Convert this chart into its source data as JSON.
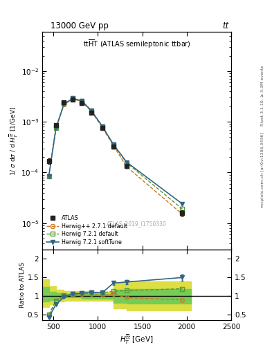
{
  "title_top": "13000 GeV pp",
  "title_top_right": "tt",
  "watermark": "ATLAS_2019_I1750330",
  "right_label1": "Rivet 3.1.10, ≥ 3.3M events",
  "right_label2": "mcplots.cern.ch [arXiv:1306.3436]",
  "ylabel_main": "1/ σ dσ / d H_T [1/GeV]",
  "ylabel_ratio": "Ratio to ATLAS",
  "xlabel": "H_T [GeV]",
  "xlim": [
    375,
    2500
  ],
  "ylim_main": [
    3e-06,
    0.06
  ],
  "ylim_ratio": [
    0.35,
    2.25
  ],
  "ratio_yticks": [
    0.5,
    1.0,
    1.5,
    2.0
  ],
  "xticks_main": [
    500,
    1000,
    1500,
    2000,
    2500
  ],
  "atlas_x": [
    450,
    530,
    620,
    720,
    820,
    930,
    1050,
    1175,
    1325,
    1950
  ],
  "atlas_y": [
    0.00017,
    0.00085,
    0.0024,
    0.00275,
    0.00235,
    0.0015,
    0.00075,
    0.00032,
    0.000135,
    1.6e-05
  ],
  "atlas_yerr_lo": [
    2e-05,
    5e-05,
    0.00015,
    0.00015,
    0.00012,
    8e-05,
    4e-05,
    2e-05,
    8e-06,
    2e-06
  ],
  "atlas_yerr_hi": [
    2e-05,
    5e-05,
    0.00015,
    0.00015,
    0.00012,
    8e-05,
    4e-05,
    2e-05,
    8e-06,
    2e-06
  ],
  "herwigpp_x": [
    450,
    530,
    620,
    720,
    820,
    930,
    1050,
    1175,
    1325,
    1950
  ],
  "herwigpp_y": [
    8.5e-05,
    0.00075,
    0.0022,
    0.00285,
    0.0025,
    0.0016,
    0.00078,
    0.00034,
    0.00013,
    1.5e-05
  ],
  "herwig721_x": [
    450,
    530,
    620,
    720,
    820,
    930,
    1050,
    1175,
    1325,
    1950
  ],
  "herwig721_y": [
    8.5e-05,
    0.00075,
    0.00225,
    0.0029,
    0.0026,
    0.00165,
    0.00082,
    0.00036,
    0.000155,
    1.9e-05
  ],
  "herwig721soft_x": [
    450,
    530,
    620,
    720,
    820,
    930,
    1050,
    1175,
    1325,
    1950
  ],
  "herwig721soft_y": [
    8.5e-05,
    0.00075,
    0.00225,
    0.0029,
    0.0026,
    0.00165,
    0.00082,
    0.00036,
    0.00016,
    2.4e-05
  ],
  "ratio_herwigpp": [
    0.5,
    0.88,
    1.0,
    1.04,
    1.06,
    1.07,
    1.04,
    1.06,
    0.96,
    0.9
  ],
  "ratio_herwig721": [
    0.5,
    0.88,
    1.02,
    1.06,
    1.08,
    1.1,
    1.09,
    1.13,
    1.15,
    1.2
  ],
  "ratio_herwig721soft": [
    0.43,
    0.78,
    0.98,
    1.06,
    1.08,
    1.1,
    1.09,
    1.35,
    1.38,
    1.5
  ],
  "ratio_herwig721soft_yerr_lo": [
    0.02,
    0.02,
    0.02,
    0.02,
    0.02,
    0.02,
    0.02,
    0.05,
    0.05,
    0.08
  ],
  "ratio_herwig721soft_yerr_hi": [
    0.02,
    0.02,
    0.02,
    0.02,
    0.02,
    0.02,
    0.02,
    0.05,
    0.05,
    0.08
  ],
  "band_x_edges": [
    375,
    450,
    530,
    620,
    720,
    820,
    930,
    1050,
    1175,
    1325,
    2050
  ],
  "band_green_lo": [
    0.85,
    0.9,
    0.94,
    0.96,
    0.96,
    0.94,
    0.94,
    0.94,
    0.82,
    0.8
  ],
  "band_green_hi": [
    1.25,
    1.12,
    1.08,
    1.06,
    1.06,
    1.06,
    1.06,
    1.06,
    1.18,
    1.2
  ],
  "band_yellow_lo": [
    0.7,
    0.78,
    0.86,
    0.88,
    0.88,
    0.88,
    0.88,
    0.88,
    0.68,
    0.62
  ],
  "band_yellow_hi": [
    1.45,
    1.26,
    1.18,
    1.14,
    1.14,
    1.14,
    1.12,
    1.12,
    1.38,
    1.4
  ],
  "color_atlas": "#222222",
  "color_herwigpp": "#cc7722",
  "color_herwig721": "#559933",
  "color_herwig721soft": "#336688",
  "color_green_band": "#77cc55",
  "color_yellow_band": "#dddd44",
  "legend_labels": [
    "ATLAS",
    "Herwig++ 2.7.1 default",
    "Herwig 7.2.1 default",
    "Herwig 7.2.1 softTune"
  ]
}
